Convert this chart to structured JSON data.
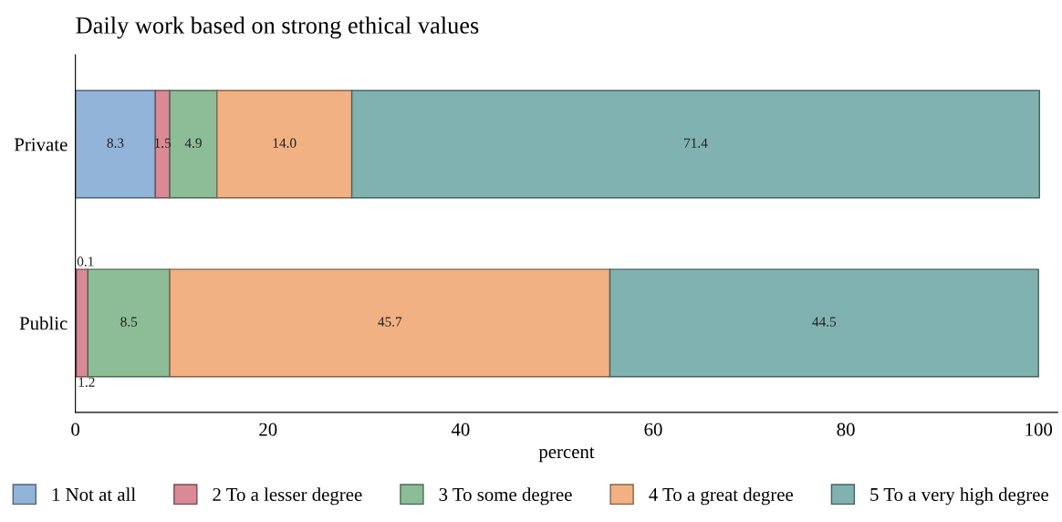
{
  "chart_data": {
    "type": "bar",
    "orientation": "horizontal",
    "stacked": true,
    "title": "Daily work based on strong ethical values",
    "xlabel": "percent",
    "categories": [
      "Private",
      "Public"
    ],
    "series": [
      {
        "name": "1 Not at all",
        "color": "#92b4d8",
        "values": [
          8.3,
          0.1
        ],
        "value_labels": [
          "8.3",
          "0.1"
        ]
      },
      {
        "name": "2 To a lesser degree",
        "color": "#d98a96",
        "values": [
          1.5,
          1.2
        ],
        "value_labels": [
          "1.5",
          "1.2"
        ]
      },
      {
        "name": "3 To some degree",
        "color": "#8cbd97",
        "values": [
          4.9,
          8.5
        ],
        "value_labels": [
          "4.9",
          "8.5"
        ]
      },
      {
        "name": "4 To a great degree",
        "color": "#f2b183",
        "values": [
          14.0,
          45.7
        ],
        "value_labels": [
          "14.0",
          "45.7"
        ]
      },
      {
        "name": "5 To a very high degree",
        "color": "#80b2b0",
        "values": [
          71.4,
          44.5
        ],
        "value_labels": [
          "71.4",
          "44.5"
        ]
      }
    ],
    "xlim": [
      0,
      102
    ],
    "xticks": [
      0,
      20,
      40,
      60,
      80,
      100
    ],
    "grid": false,
    "legend": "bottom"
  }
}
